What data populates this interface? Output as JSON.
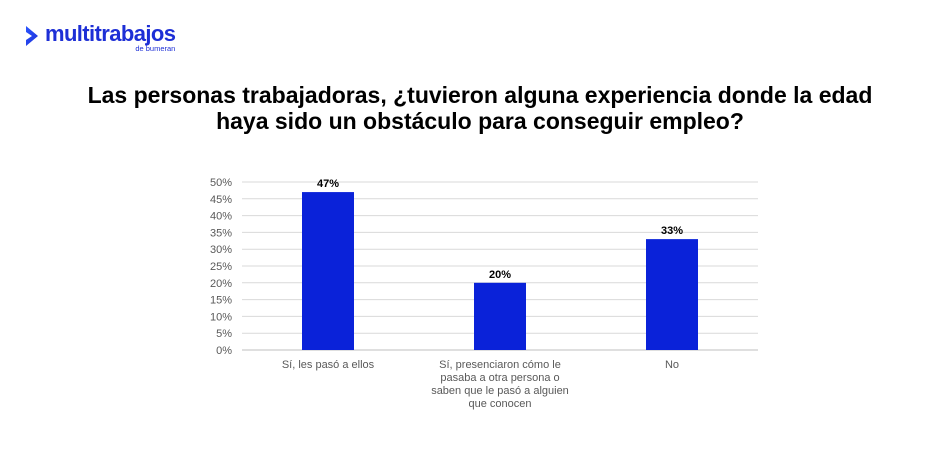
{
  "logo": {
    "name": "multitrabajos",
    "subtitle": "de bumeran",
    "color": "#1d2fd6"
  },
  "chart_data": {
    "type": "bar",
    "title": "Las personas trabajadoras, ¿tuvieron alguna experiencia donde la edad haya sido un obstáculo para conseguir empleo?",
    "categories": [
      "Sí, les pasó a ellos",
      "Sí, presenciaron cómo le pasaba a otra persona o saben que le pasó a alguien que conocen",
      "No"
    ],
    "values": [
      47,
      20,
      33
    ],
    "data_labels": [
      "47%",
      "20%",
      "33%"
    ],
    "ylim": [
      0,
      50
    ],
    "yticks": [
      0,
      5,
      10,
      15,
      20,
      25,
      30,
      35,
      40,
      45,
      50
    ],
    "ytick_labels": [
      "0%",
      "5%",
      "10%",
      "15%",
      "20%",
      "25%",
      "30%",
      "35%",
      "40%",
      "45%",
      "50%"
    ],
    "xlabel": "",
    "ylabel": "",
    "grid": true,
    "legend": "none",
    "bar_color": "#0a22d9",
    "grid_color": "#d9d9d9"
  }
}
